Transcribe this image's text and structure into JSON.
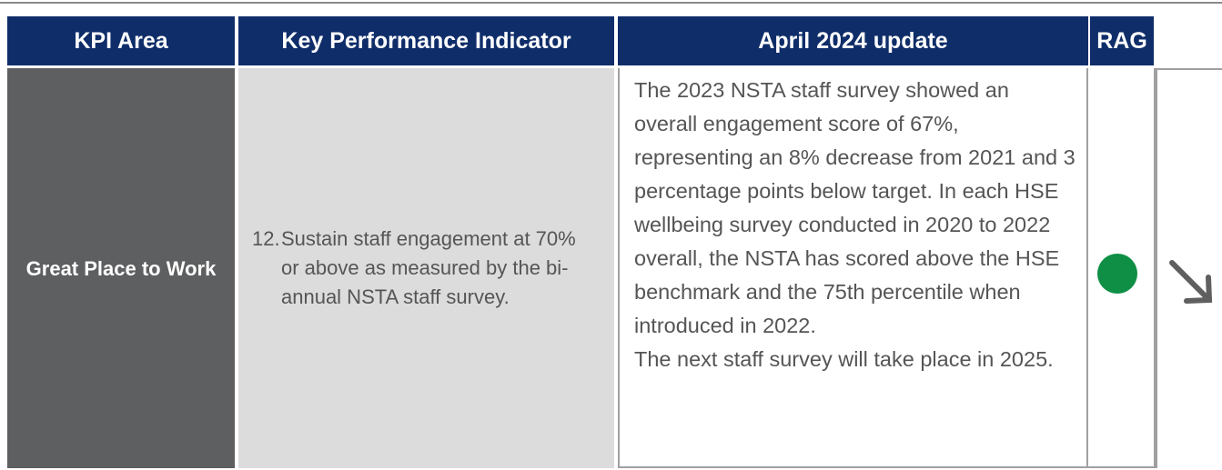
{
  "header": {
    "columns": [
      "KPI Area",
      "Key Performance Indicator",
      "April 2024 update",
      "RAG"
    ]
  },
  "rows": [
    {
      "kpi_area": "Great Place to Work",
      "indicator": {
        "number": "12.",
        "text": "Sustain staff engagement at 70% or above as measured by the bi-annual NSTA staff survey."
      },
      "update": [
        "The 2023 NSTA staff survey showed an overall engagement score of 67%, representing an 8% decrease from 2021 and 3 percentage points below target. In each HSE wellbeing survey conducted in 2020 to 2022 overall, the NSTA has scored above the HSE benchmark and the 75th percentile when introduced in 2022.",
        "The next staff survey will take place in 2025."
      ]
    }
  ]
}
